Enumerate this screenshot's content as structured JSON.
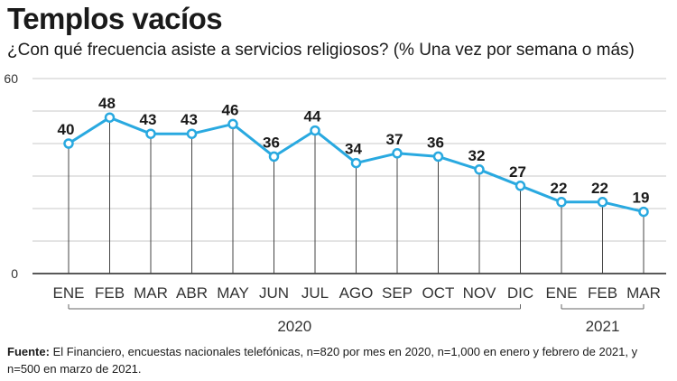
{
  "title": "Templos vacíos",
  "subtitle": "¿Con qué frecuencia asiste a servicios religiosos? (% Una vez por semana o más)",
  "footer": {
    "label": "Fuente:",
    "text": " El Financiero, encuestas nacionales telefónicas, n=820 por mes en 2020, n=1,000 en enero y febrero de 2021, y n=500 en marzo de 2021."
  },
  "colors": {
    "line": "#29a9e0",
    "grid": "#c8c8c8",
    "text": "#1a1a1a"
  },
  "chart_data": {
    "type": "line",
    "categories": [
      "ENE",
      "FEB",
      "MAR",
      "ABR",
      "MAY",
      "JUN",
      "JUL",
      "AGO",
      "SEP",
      "OCT",
      "NOV",
      "DIC",
      "ENE",
      "FEB",
      "MAR"
    ],
    "values": [
      40,
      48,
      43,
      43,
      46,
      36,
      44,
      34,
      37,
      36,
      32,
      27,
      22,
      22,
      19
    ],
    "data_labels": [
      "40",
      "48",
      "43",
      "43",
      "46",
      "36",
      "44",
      "34",
      "37",
      "36",
      "32",
      "27",
      "22",
      "22",
      "19"
    ],
    "y_ticks": [
      "0",
      "60"
    ],
    "ylim": [
      0,
      60
    ],
    "groups": [
      {
        "label": "2020",
        "from": 0,
        "to": 11
      },
      {
        "label": "2021",
        "from": 12,
        "to": 14
      }
    ],
    "grid": true,
    "legend": "none"
  }
}
